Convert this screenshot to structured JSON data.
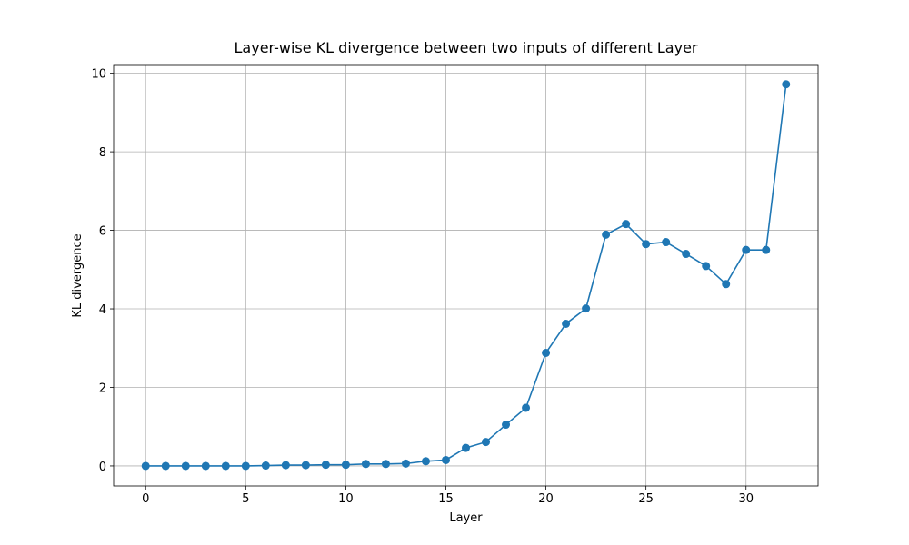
{
  "chart_data": {
    "type": "line",
    "title": "Layer-wise KL divergence between two inputs of different Layer",
    "x_label": "Layer",
    "y_label": "KL divergence",
    "x": [
      0,
      1,
      2,
      3,
      4,
      5,
      6,
      7,
      8,
      9,
      10,
      11,
      12,
      13,
      14,
      15,
      16,
      17,
      18,
      19,
      20,
      21,
      22,
      23,
      24,
      25,
      26,
      27,
      28,
      29,
      30,
      31,
      32
    ],
    "series": [
      {
        "name": "KL divergence",
        "color": "#1f77b4",
        "values": [
          0.0,
          0.0,
          0.0,
          0.0,
          0.0,
          0.0,
          0.01,
          0.02,
          0.02,
          0.03,
          0.03,
          0.05,
          0.05,
          0.06,
          0.12,
          0.15,
          0.46,
          0.61,
          1.05,
          1.48,
          2.88,
          3.62,
          4.01,
          5.89,
          6.16,
          5.65,
          5.7,
          5.4,
          5.09,
          4.63,
          5.5,
          5.5,
          9.72
        ]
      }
    ],
    "xlim": [
      -1.6,
      33.6
    ],
    "ylim": [
      -0.51,
      10.2
    ],
    "xticks": [
      0,
      5,
      10,
      15,
      20,
      25,
      30
    ],
    "yticks": [
      0,
      2,
      4,
      6,
      8,
      10
    ],
    "grid": true
  }
}
